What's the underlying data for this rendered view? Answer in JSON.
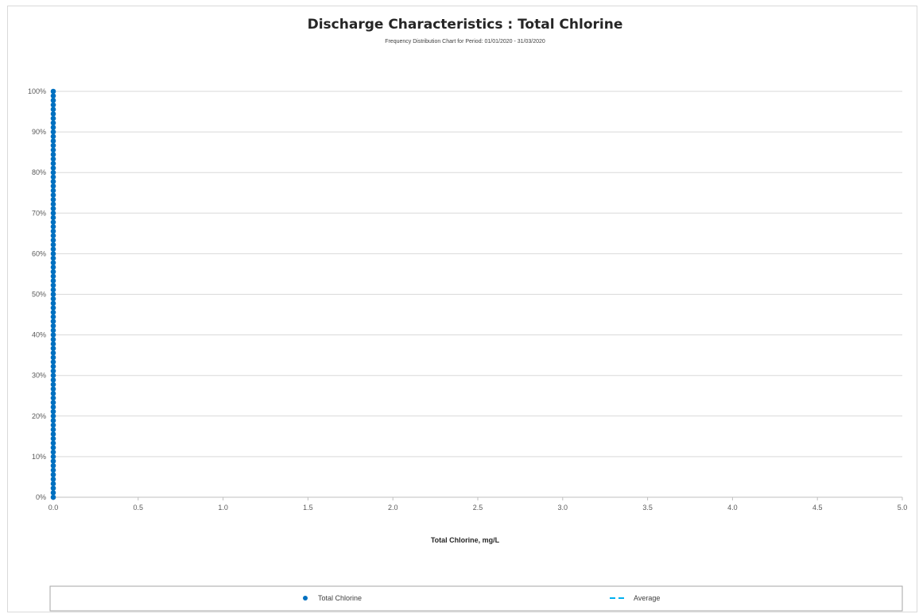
{
  "chart_data": {
    "type": "scatter",
    "title": "Discharge Characteristics : Total Chlorine",
    "subtitle": "Frequency Distribution Chart for Period: 01/01/2020 - 31/03/2020",
    "xlabel": "Total Chlorine, mg/L",
    "ylabel": "",
    "xlim": [
      0,
      5
    ],
    "ylim": [
      0,
      100
    ],
    "x_ticks": [
      "0.0",
      "0.5",
      "1.0",
      "1.5",
      "2.0",
      "2.5",
      "3.0",
      "3.5",
      "4.0",
      "4.5",
      "5.0"
    ],
    "y_ticks": [
      "0%",
      "10%",
      "20%",
      "30%",
      "40%",
      "50%",
      "60%",
      "70%",
      "80%",
      "90%",
      "100%"
    ],
    "grid": "horizontal",
    "legend_position": "bottom",
    "series": [
      {
        "name": "Total Chlorine",
        "marker": "circle",
        "color": "#0070c0",
        "x_value": 0,
        "y_range": [
          0,
          100
        ],
        "point_count": 91
      },
      {
        "name": "Average",
        "marker": "dashed-line",
        "color": "#00b0f0"
      }
    ]
  }
}
